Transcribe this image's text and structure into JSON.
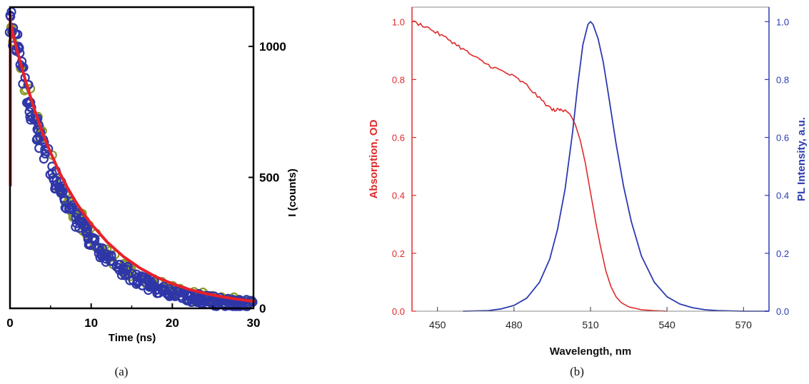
{
  "panels": {
    "a_caption": "(a)",
    "b_caption": "(b)"
  },
  "chart_data": [
    {
      "type": "scatter",
      "caption": "(a)",
      "xlabel": "Time (ns)",
      "ylabel": "I (counts)",
      "xlim": [
        0,
        30
      ],
      "ylim": [
        0,
        1150
      ],
      "xticks": [
        0,
        10,
        20,
        30
      ],
      "yticks": [
        0,
        500,
        1000
      ],
      "yaxis_side": "right",
      "grid": false,
      "series": [
        {
          "kind": "open-circles",
          "color": "#8a9a2c",
          "decay": {
            "amplitude": 1130,
            "tau_ns": 7.2,
            "offset": 0
          },
          "x_range": [
            0,
            30
          ],
          "count": 150
        },
        {
          "kind": "open-circles",
          "color": "#2e36a8",
          "decay": {
            "amplitude": 1130,
            "tau_ns": 6.8,
            "offset": 0
          },
          "x_range": [
            0,
            30
          ],
          "count": 300
        },
        {
          "kind": "line",
          "color": "#e8202a",
          "x": [
            0,
            0.5,
            1,
            2,
            3,
            4,
            5,
            6,
            7,
            8,
            9,
            10,
            12,
            14,
            16,
            18,
            20,
            22,
            24,
            26,
            28,
            30
          ],
          "y": [
            1100,
            1030,
            970,
            860,
            760,
            670,
            595,
            525,
            465,
            412,
            365,
            322,
            252,
            197,
            154,
            120,
            94,
            73,
            57,
            45,
            35,
            27
          ]
        },
        {
          "kind": "line",
          "color": "#e8202a",
          "x": [
            0.05,
            0.05
          ],
          "y": [
            470,
            1120
          ]
        }
      ]
    },
    {
      "type": "line",
      "caption": "(b)",
      "xlabel": "Wavelength, nm",
      "ylabel_left": "Absorption, OD",
      "ylabel_right": "PL Intensity, a.u.",
      "xlim": [
        440,
        580
      ],
      "ylim": [
        0,
        1.05
      ],
      "xticks": [
        450,
        480,
        510,
        540,
        570
      ],
      "yticks": [
        0.0,
        0.2,
        0.4,
        0.6,
        0.8,
        1.0
      ],
      "ytick_labels": [
        "0.0",
        "0.2",
        "0.4",
        "0.6",
        "0.8",
        "1.0"
      ],
      "grid": false,
      "series": [
        {
          "axis": "left",
          "color": "#e02a2a",
          "x": [
            440,
            445,
            450,
            455,
            460,
            465,
            470,
            475,
            480,
            485,
            490,
            495,
            498,
            500,
            502,
            504,
            506,
            508,
            510,
            512,
            514,
            516,
            518,
            520,
            522,
            525,
            530,
            535,
            540
          ],
          "y": [
            1.0,
            0.985,
            0.96,
            0.935,
            0.905,
            0.875,
            0.85,
            0.83,
            0.81,
            0.78,
            0.735,
            0.695,
            0.695,
            0.695,
            0.68,
            0.645,
            0.59,
            0.51,
            0.41,
            0.31,
            0.22,
            0.14,
            0.085,
            0.05,
            0.03,
            0.015,
            0.005,
            0.002,
            0.0
          ]
        },
        {
          "axis": "right",
          "color": "#2b3bb0",
          "x": [
            460,
            470,
            475,
            480,
            485,
            490,
            494,
            497,
            500,
            503,
            505,
            507,
            509,
            510,
            511,
            513,
            515,
            517,
            520,
            523,
            526,
            530,
            535,
            540,
            545,
            550,
            555,
            560,
            570,
            580
          ],
          "y": [
            0.0,
            0.002,
            0.008,
            0.02,
            0.045,
            0.1,
            0.18,
            0.28,
            0.42,
            0.62,
            0.78,
            0.92,
            0.99,
            1.0,
            0.99,
            0.94,
            0.86,
            0.75,
            0.58,
            0.43,
            0.31,
            0.19,
            0.1,
            0.05,
            0.025,
            0.012,
            0.005,
            0.002,
            0.0,
            0.0
          ]
        }
      ]
    }
  ]
}
